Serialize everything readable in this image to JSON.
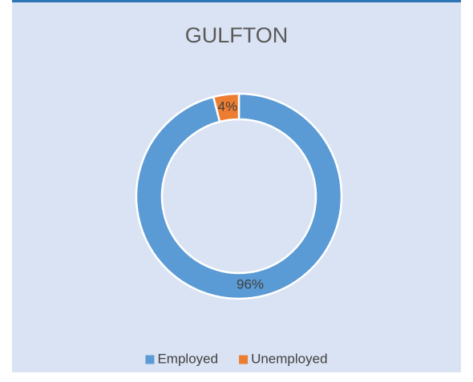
{
  "chart_data": {
    "type": "donut",
    "title": "GULFTON",
    "categories": [
      "Employed",
      "Unemployed"
    ],
    "values": [
      96,
      4
    ],
    "value_labels": [
      "96%",
      "4%"
    ],
    "colors": [
      "#5b9bd5",
      "#ed7d31"
    ],
    "legend": "bottom"
  }
}
